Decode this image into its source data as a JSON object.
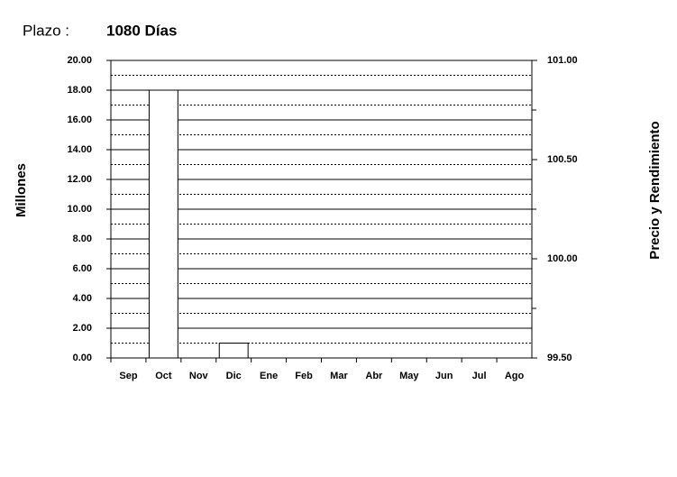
{
  "header": {
    "label": "Plazo :",
    "value": "1080 Días"
  },
  "chart_data": {
    "type": "bar",
    "categories": [
      "Sep",
      "Oct",
      "Nov",
      "Dic",
      "Ene",
      "Feb",
      "Mar",
      "Abr",
      "May",
      "Jun",
      "Jul",
      "Ago"
    ],
    "values": [
      0,
      18,
      0,
      1,
      0,
      0,
      0,
      0,
      0,
      0,
      0,
      0
    ],
    "color": "#ffffff",
    "ylabel": "Millones",
    "y2label": "Precio y Rendimiento",
    "ylim": [
      0,
      20
    ],
    "yticks": [
      {
        "value": 0,
        "label": "0.00"
      },
      {
        "value": 2,
        "label": "2.00"
      },
      {
        "value": 4,
        "label": "4.00"
      },
      {
        "value": 6,
        "label": "6.00"
      },
      {
        "value": 8,
        "label": "8.00"
      },
      {
        "value": 10,
        "label": "10.00"
      },
      {
        "value": 12,
        "label": "12.00"
      },
      {
        "value": 14,
        "label": "14.00"
      },
      {
        "value": 16,
        "label": "16.00"
      },
      {
        "value": 18,
        "label": "18.00"
      },
      {
        "value": 20,
        "label": "20.00"
      }
    ],
    "yminor_ticks": [
      1,
      3,
      5,
      7,
      9,
      11,
      13,
      15,
      17,
      19
    ],
    "y2lim": [
      99.5,
      101
    ],
    "y2ticks": [
      {
        "value": 99.5,
        "label": "99.50"
      },
      {
        "value": 100,
        "label": "100.00"
      },
      {
        "value": 100.5,
        "label": "100.50"
      },
      {
        "value": 101,
        "label": "101.00"
      }
    ],
    "y2minor_ticks": [
      99.75,
      100.25,
      100.75
    ],
    "grid": true
  }
}
